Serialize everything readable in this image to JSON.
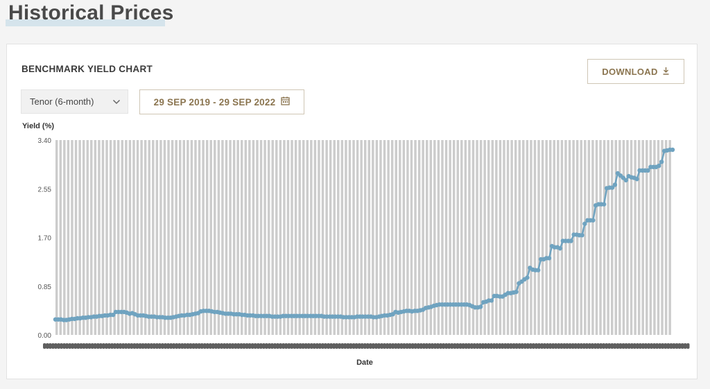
{
  "page": {
    "title": "Historical Prices"
  },
  "card": {
    "heading": "BENCHMARK YIELD CHART",
    "download_label": "DOWNLOAD",
    "tenor_selected": "Tenor (6-month)",
    "date_range": "29 SEP 2019 - 29 SEP 2022"
  },
  "icons": {
    "download": "download-icon",
    "chevron": "chevron-down-icon",
    "calendar": "calendar-icon"
  },
  "colors": {
    "series": "#6fa3c0",
    "bars": "#cccccc",
    "accent": "#8b7550"
  },
  "chart_data": {
    "type": "line",
    "title": "",
    "xlabel": "Date",
    "ylabel": "Yield (%)",
    "ylim": [
      0,
      3.4
    ],
    "yticks": [
      "0.00",
      "0.85",
      "1.70",
      "2.55",
      "3.40"
    ],
    "grid": "vertical bands",
    "legend": "none",
    "series": [
      {
        "values": [
          0.27,
          0.27,
          0.27,
          0.26,
          0.26,
          0.27,
          0.28,
          0.28,
          0.29,
          0.29,
          0.3,
          0.3,
          0.31,
          0.31,
          0.32,
          0.32,
          0.33,
          0.33,
          0.34,
          0.34,
          0.35,
          0.35,
          0.4,
          0.4,
          0.4,
          0.4,
          0.39,
          0.37,
          0.38,
          0.36,
          0.34,
          0.34,
          0.34,
          0.33,
          0.32,
          0.32,
          0.32,
          0.31,
          0.31,
          0.31,
          0.3,
          0.3,
          0.3,
          0.31,
          0.32,
          0.33,
          0.34,
          0.34,
          0.35,
          0.35,
          0.36,
          0.37,
          0.38,
          0.41,
          0.42,
          0.42,
          0.42,
          0.41,
          0.4,
          0.4,
          0.39,
          0.38,
          0.37,
          0.37,
          0.37,
          0.36,
          0.36,
          0.36,
          0.35,
          0.35,
          0.34,
          0.34,
          0.34,
          0.33,
          0.33,
          0.33,
          0.33,
          0.33,
          0.33,
          0.32,
          0.32,
          0.32,
          0.32,
          0.33,
          0.33,
          0.33,
          0.33,
          0.33,
          0.33,
          0.33,
          0.33,
          0.33,
          0.33,
          0.33,
          0.33,
          0.33,
          0.33,
          0.33,
          0.32,
          0.32,
          0.32,
          0.32,
          0.32,
          0.32,
          0.32,
          0.31,
          0.31,
          0.31,
          0.31,
          0.31,
          0.32,
          0.32,
          0.32,
          0.32,
          0.32,
          0.32,
          0.31,
          0.31,
          0.32,
          0.33,
          0.34,
          0.34,
          0.35,
          0.36,
          0.4,
          0.39,
          0.4,
          0.41,
          0.42,
          0.42,
          0.41,
          0.42,
          0.42,
          0.43,
          0.44,
          0.47,
          0.48,
          0.49,
          0.51,
          0.52,
          0.53,
          0.53,
          0.53,
          0.53,
          0.53,
          0.53,
          0.53,
          0.53,
          0.53,
          0.53,
          0.53,
          0.52,
          0.5,
          0.48,
          0.48,
          0.49,
          0.57,
          0.58,
          0.6,
          0.6,
          0.68,
          0.68,
          0.67,
          0.67,
          0.7,
          0.73,
          0.73,
          0.74,
          0.75,
          0.9,
          0.93,
          0.97,
          1.0,
          1.17,
          1.14,
          1.13,
          1.13,
          1.32,
          1.32,
          1.34,
          1.34,
          1.55,
          1.53,
          1.53,
          1.51,
          1.64,
          1.64,
          1.64,
          1.64,
          1.75,
          1.75,
          1.74,
          1.74,
          1.94,
          2.0,
          2.0,
          2.0,
          2.26,
          2.28,
          2.28,
          2.28,
          2.56,
          2.57,
          2.57,
          2.62,
          2.82,
          2.78,
          2.74,
          2.7,
          2.77,
          2.75,
          2.74,
          2.72,
          2.87,
          2.87,
          2.87,
          2.87,
          2.93,
          2.93,
          2.93,
          2.95,
          3.02,
          3.21,
          3.22,
          3.23,
          3.23
        ]
      }
    ]
  }
}
